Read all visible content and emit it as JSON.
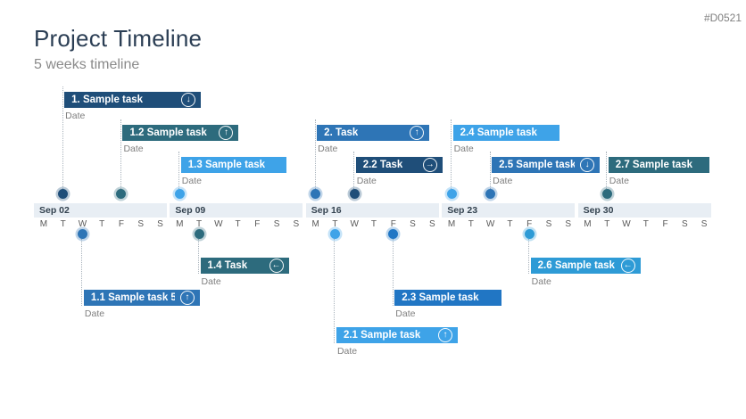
{
  "header": {
    "title": "Project Timeline",
    "subtitle": "5 weeks timeline",
    "code": "#D0521"
  },
  "palette": {
    "navy": "#1F4E79",
    "blue": "#2E75B6",
    "blue2": "#2176C4",
    "lightblue": "#3EA3E8",
    "sky": "#2E9BD6",
    "teal": "#2D6B7D",
    "band_bg": "#E8EEF4",
    "band_label": "#33424F",
    "day_letter": "#595959",
    "date_label": "#7F7F7F",
    "connector": "#A9B3BC",
    "title": "#2B3E54",
    "subtitle": "#8A8A8A"
  },
  "icons": {
    "up": "↑",
    "down": "↓",
    "left": "←",
    "right": "→"
  },
  "timeline": {
    "day_letters": [
      "M",
      "T",
      "W",
      "T",
      "F",
      "S",
      "S"
    ],
    "weeks": [
      {
        "label": "Sep 02"
      },
      {
        "label": "Sep 09"
      },
      {
        "label": "Sep 16"
      },
      {
        "label": "Sep 23"
      },
      {
        "label": "Sep 30"
      }
    ]
  },
  "tasks": [
    {
      "label": "1. Sample task",
      "date_label": "Date",
      "color": "navy",
      "icon": "down",
      "side": "above",
      "row": 0,
      "week": 0,
      "day": 1,
      "width": 153
    },
    {
      "label": "1.2 Sample task",
      "date_label": "Date",
      "color": "teal",
      "icon": "up",
      "side": "above",
      "row": 1,
      "week": 0,
      "day": 4,
      "width": 130
    },
    {
      "label": "1.3 Sample task",
      "date_label": "Date",
      "color": "lightblue",
      "icon": null,
      "side": "above",
      "row": 2,
      "week": 1,
      "day": 0,
      "width": 118
    },
    {
      "label": "2. Task",
      "date_label": "Date",
      "color": "blue",
      "icon": "up",
      "side": "above",
      "row": 1,
      "week": 2,
      "day": 0,
      "width": 126
    },
    {
      "label": "2.2 Task",
      "date_label": "Date",
      "color": "navy",
      "icon": "right",
      "side": "above",
      "row": 2,
      "week": 2,
      "day": 2,
      "width": 97
    },
    {
      "label": "2.4 Sample task",
      "date_label": "Date",
      "color": "lightblue",
      "icon": null,
      "side": "above",
      "row": 1,
      "week": 3,
      "day": 0,
      "width": 119
    },
    {
      "label": "2.5 Sample task",
      "date_label": "Date",
      "color": "blue",
      "icon": "down",
      "side": "above",
      "row": 2,
      "week": 3,
      "day": 2,
      "width": 121
    },
    {
      "label": "2.7 Sample task",
      "date_label": "Date",
      "color": "teal",
      "icon": null,
      "side": "above",
      "row": 2,
      "week": 4,
      "day": 1,
      "width": 113
    },
    {
      "label": "1.1 Sample task 5",
      "date_label": "Date",
      "color": "blue",
      "icon": "up",
      "side": "below",
      "row": 1,
      "week": 0,
      "day": 2,
      "width": 130
    },
    {
      "label": "1.4 Task",
      "date_label": "Date",
      "color": "teal",
      "icon": "left",
      "side": "below",
      "row": 0,
      "week": 1,
      "day": 1,
      "width": 99
    },
    {
      "label": "2.1 Sample task",
      "date_label": "Date",
      "color": "lightblue",
      "icon": "up",
      "side": "below",
      "row": 2,
      "week": 2,
      "day": 1,
      "width": 136
    },
    {
      "label": "2.3 Sample task",
      "date_label": "Date",
      "color": "blue2",
      "icon": null,
      "side": "below",
      "row": 1,
      "week": 2,
      "day": 4,
      "width": 120
    },
    {
      "label": "2.6 Sample task",
      "date_label": "Date",
      "color": "sky",
      "icon": "left",
      "side": "below",
      "row": 0,
      "week": 3,
      "day": 4,
      "width": 123
    }
  ]
}
